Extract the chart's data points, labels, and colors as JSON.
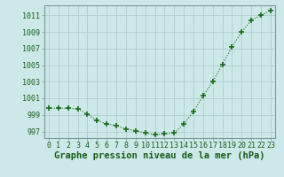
{
  "x": [
    0,
    1,
    2,
    3,
    4,
    5,
    6,
    7,
    8,
    9,
    10,
    11,
    12,
    13,
    14,
    15,
    16,
    17,
    18,
    19,
    20,
    21,
    22,
    23
  ],
  "y": [
    999.8,
    999.8,
    999.8,
    999.7,
    999.1,
    998.3,
    997.9,
    997.7,
    997.3,
    997.1,
    996.8,
    996.6,
    996.7,
    996.8,
    997.9,
    999.4,
    1001.3,
    1003.0,
    1005.1,
    1007.2,
    1009.0,
    1010.4,
    1011.0,
    1011.6
  ],
  "line_color": "#1a6b1a",
  "marker_color": "#1a6b1a",
  "bg_color": "#cce8e8",
  "grid_color": "#aac8c8",
  "title": "Graphe pression niveau de la mer (hPa)",
  "ylabel_ticks": [
    997,
    999,
    1001,
    1003,
    1005,
    1007,
    1009,
    1011
  ],
  "xlim": [
    -0.5,
    23.5
  ],
  "ylim": [
    996.2,
    1012.2
  ],
  "title_color": "#1a5c1a",
  "title_fontsize": 7.5,
  "tick_fontsize": 6.0,
  "axis_label_color": "#1a5c1a",
  "spine_color": "#7a9a9a"
}
